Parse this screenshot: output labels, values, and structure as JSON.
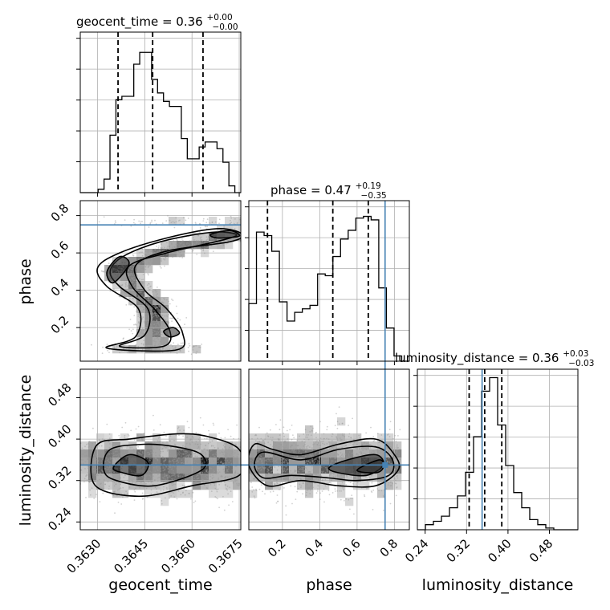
{
  "chart_data": {
    "type": "corner",
    "parameters": [
      "geocent_time",
      "phase",
      "luminosity_distance"
    ],
    "truths": {
      "phase": 0.75,
      "luminosity_distance": 0.35
    },
    "colors": {
      "hist": "#000000",
      "truth": "#4682b4",
      "quantile": "#000000",
      "grid": "#b0b0b0",
      "scatter": "#9a9a9a"
    },
    "panels": {
      "geocent_time": {
        "title": {
          "main": "geocent_time = 0.36",
          "sup": "+0.00",
          "sub": "−0.00"
        },
        "range": [
          0.36245,
          0.36755
        ],
        "ticks": [
          0.363,
          0.3645,
          0.366,
          0.3675
        ],
        "tick_labels": [
          "0.3630",
          "0.3645",
          "0.3660",
          "0.3675"
        ],
        "quantiles": [
          0.36365,
          0.36475,
          0.36635
        ],
        "hist": [
          0.0,
          0.0,
          0.0,
          0.02,
          0.08,
          0.34,
          0.55,
          0.57,
          0.57,
          0.76,
          0.83,
          0.83,
          0.67,
          0.59,
          0.54,
          0.51,
          0.51,
          0.32,
          0.2,
          0.2,
          0.27,
          0.3,
          0.3,
          0.26,
          0.18,
          0.04,
          0.0
        ],
        "ymax": 0.95
      },
      "phase": {
        "title": {
          "main": "phase = 0.47",
          "sup": "+0.19",
          "sub": "−0.35"
        },
        "range": [
          0.02,
          0.88
        ],
        "ticks": [
          0.2,
          0.4,
          0.6,
          0.8
        ],
        "tick_labels": [
          "0.2",
          "0.4",
          "0.6",
          "0.8"
        ],
        "quantiles": [
          0.12,
          0.47,
          0.66
        ],
        "hist": [
          0.33,
          0.74,
          0.72,
          0.63,
          0.34,
          0.23,
          0.28,
          0.3,
          0.32,
          0.5,
          0.49,
          0.6,
          0.7,
          0.75,
          0.82,
          0.83,
          0.81,
          0.42,
          0.19,
          0.03,
          0.0
        ],
        "ymax": 0.92
      },
      "luminosity_distance": {
        "title": {
          "main": "luminosity_distance = 0.36",
          "sup": "+0.03",
          "sub": "−0.03"
        },
        "range": [
          0.225,
          0.535
        ],
        "ticks": [
          0.24,
          0.32,
          0.4,
          0.48
        ],
        "tick_labels": [
          "0.24",
          "0.32",
          "0.40",
          "0.48"
        ],
        "quantiles": [
          0.325,
          0.355,
          0.388
        ],
        "hist": [
          0.0,
          0.03,
          0.05,
          0.08,
          0.13,
          0.2,
          0.34,
          0.55,
          0.82,
          0.9,
          0.62,
          0.38,
          0.22,
          0.13,
          0.06,
          0.03,
          0.01,
          0.0,
          0.0,
          0.0
        ],
        "ymax": 0.95
      }
    },
    "axis_labels": {
      "x": [
        "geocent_time",
        "phase",
        "luminosity_distance"
      ],
      "y": [
        "phase",
        "luminosity_distance"
      ]
    },
    "contours": {
      "phase_vs_geocent_time": [
        {
          "level": 1,
          "points": [
            [
              0.3633,
              0.09
            ],
            [
              0.3655,
              0.08
            ],
            [
              0.3657,
              0.17
            ],
            [
              0.3652,
              0.3
            ],
            [
              0.3645,
              0.4
            ],
            [
              0.3642,
              0.53
            ],
            [
              0.3652,
              0.61
            ],
            [
              0.3672,
              0.66
            ],
            [
              0.3676,
              0.7
            ],
            [
              0.3668,
              0.73
            ],
            [
              0.3652,
              0.68
            ],
            [
              0.3637,
              0.6
            ],
            [
              0.363,
              0.52
            ],
            [
              0.3633,
              0.42
            ],
            [
              0.3643,
              0.3
            ],
            [
              0.3642,
              0.15
            ]
          ]
        },
        {
          "level": 2,
          "points": [
            [
              0.3637,
              0.1
            ],
            [
              0.3651,
              0.1
            ],
            [
              0.3653,
              0.18
            ],
            [
              0.3648,
              0.3
            ],
            [
              0.3641,
              0.42
            ],
            [
              0.364,
              0.53
            ],
            [
              0.3652,
              0.6
            ],
            [
              0.367,
              0.67
            ],
            [
              0.3674,
              0.7
            ],
            [
              0.3666,
              0.71
            ],
            [
              0.365,
              0.66
            ],
            [
              0.3638,
              0.58
            ],
            [
              0.3634,
              0.5
            ],
            [
              0.3637,
              0.42
            ],
            [
              0.3646,
              0.3
            ],
            [
              0.3645,
              0.16
            ]
          ]
        },
        {
          "level": 3,
          "points": [
            [
              0.3635,
              0.44
            ],
            [
              0.364,
              0.54
            ],
            [
              0.3637,
              0.58
            ],
            [
              0.3633,
              0.5
            ]
          ]
        },
        {
          "level": 4,
          "points": [
            [
              0.3668,
              0.68
            ],
            [
              0.3675,
              0.69
            ],
            [
              0.3672,
              0.72
            ],
            [
              0.3666,
              0.7
            ]
          ]
        },
        {
          "level": 5,
          "points": [
            [
              0.3653,
              0.15
            ],
            [
              0.3656,
              0.17
            ],
            [
              0.3654,
              0.2
            ],
            [
              0.3651,
              0.18
            ]
          ]
        }
      ],
      "luminosity_distance_vs_geocent_time": [
        {
          "level": 1,
          "points": [
            [
              0.3628,
              0.33
            ],
            [
              0.363,
              0.39
            ],
            [
              0.364,
              0.4
            ],
            [
              0.3655,
              0.41
            ],
            [
              0.3665,
              0.405
            ],
            [
              0.3675,
              0.38
            ],
            [
              0.3675,
              0.33
            ],
            [
              0.366,
              0.31
            ],
            [
              0.3645,
              0.29
            ],
            [
              0.3632,
              0.3
            ]
          ]
        },
        {
          "level": 2,
          "points": [
            [
              0.3632,
              0.34
            ],
            [
              0.3634,
              0.38
            ],
            [
              0.3645,
              0.39
            ],
            [
              0.3655,
              0.385
            ],
            [
              0.3663,
              0.37
            ],
            [
              0.3663,
              0.34
            ],
            [
              0.3648,
              0.31
            ],
            [
              0.3636,
              0.32
            ]
          ]
        },
        {
          "level": 3,
          "points": [
            [
              0.3635,
              0.345
            ],
            [
              0.364,
              0.37
            ],
            [
              0.3646,
              0.355
            ],
            [
              0.3644,
              0.33
            ],
            [
              0.3638,
              0.335
            ]
          ]
        }
      ],
      "luminosity_distance_vs_phase": [
        {
          "level": 1,
          "points": [
            [
              0.02,
              0.35
            ],
            [
              0.05,
              0.39
            ],
            [
              0.15,
              0.38
            ],
            [
              0.3,
              0.37
            ],
            [
              0.5,
              0.39
            ],
            [
              0.7,
              0.4
            ],
            [
              0.8,
              0.37
            ],
            [
              0.82,
              0.34
            ],
            [
              0.7,
              0.31
            ],
            [
              0.5,
              0.31
            ],
            [
              0.3,
              0.32
            ],
            [
              0.12,
              0.31
            ]
          ]
        },
        {
          "level": 2,
          "points": [
            [
              0.05,
              0.35
            ],
            [
              0.1,
              0.375
            ],
            [
              0.3,
              0.36
            ],
            [
              0.5,
              0.38
            ],
            [
              0.7,
              0.385
            ],
            [
              0.79,
              0.36
            ],
            [
              0.77,
              0.33
            ],
            [
              0.6,
              0.32
            ],
            [
              0.45,
              0.325
            ],
            [
              0.25,
              0.33
            ],
            [
              0.1,
              0.325
            ]
          ]
        },
        {
          "level": 3,
          "points": [
            [
              0.45,
              0.345
            ],
            [
              0.55,
              0.36
            ],
            [
              0.7,
              0.37
            ],
            [
              0.74,
              0.35
            ],
            [
              0.65,
              0.33
            ],
            [
              0.5,
              0.335
            ]
          ]
        },
        {
          "level": 4,
          "points": [
            [
              0.6,
              0.34
            ],
            [
              0.72,
              0.36
            ],
            [
              0.74,
              0.345
            ],
            [
              0.7,
              0.335
            ]
          ]
        }
      ]
    }
  }
}
